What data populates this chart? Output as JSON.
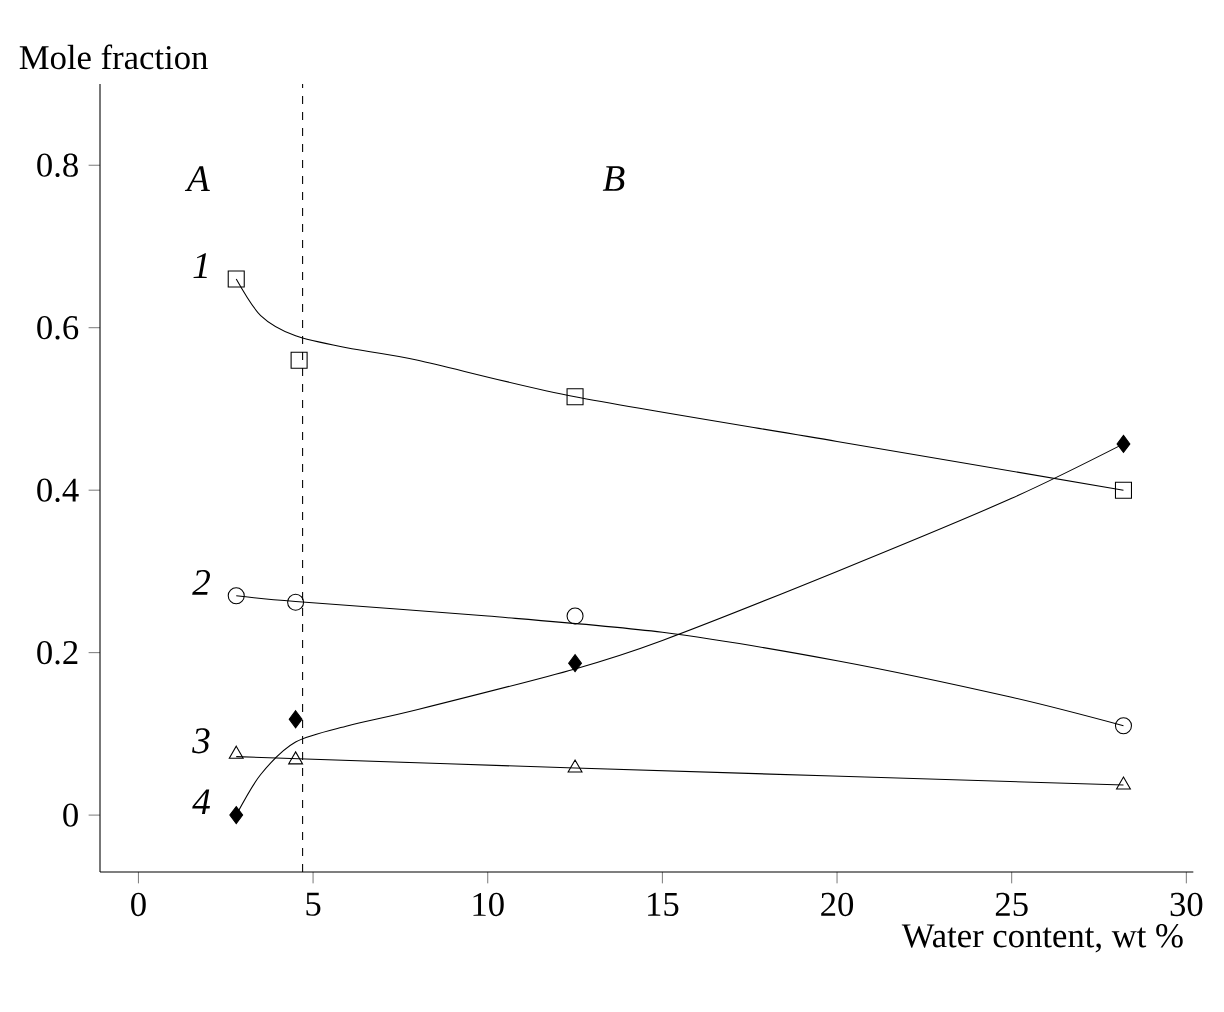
{
  "chart_data": {
    "type": "scatter",
    "xlabel": "Water content, wt %",
    "ylabel": "Mole fraction",
    "xlim": [
      -1.1,
      30.2
    ],
    "ylim": [
      -0.07,
      0.9
    ],
    "xticks": [
      0,
      5,
      10,
      15,
      20,
      25,
      30
    ],
    "yticks": [
      0,
      0.2,
      0.4,
      0.6,
      0.8
    ],
    "ref_lines": [
      {
        "axis": "x",
        "value": 4.7,
        "line_style": "dashed",
        "color": "#000000"
      }
    ],
    "annotations": [
      "*A*",
      "*B*"
    ],
    "series": [
      {
        "name": "*1*",
        "color": "#000000",
        "marker": "square",
        "x": [
          2.8,
          4.6,
          12.5,
          28.2
        ],
        "values": [
          0.66,
          0.56,
          0.515,
          0.4
        ]
      },
      {
        "name": "*2*",
        "color": "#000000",
        "marker": "circle",
        "x": [
          2.8,
          4.5,
          12.5,
          28.2
        ],
        "values": [
          0.27,
          0.262,
          0.245,
          0.11
        ]
      },
      {
        "name": "*3*",
        "color": "#000000",
        "marker": "triangle",
        "x": [
          2.8,
          4.5,
          12.5,
          28.2
        ],
        "values": [
          0.075,
          0.068,
          0.058,
          0.037
        ]
      },
      {
        "name": "*4*",
        "color": "#000000",
        "marker": "diamond",
        "x": [
          2.8,
          4.5,
          12.5,
          28.2
        ],
        "values": [
          0.0,
          0.118,
          0.187,
          0.457
        ]
      },
      {
        "type": "line",
        "color": "#000000",
        "marker": "none",
        "x": [
          2.8,
          3.5,
          4.5,
          6,
          8,
          12.5,
          20,
          28.2
        ],
        "values": [
          0.66,
          0.615,
          0.59,
          0.575,
          0.56,
          0.515,
          0.46,
          0.4
        ]
      },
      {
        "type": "line",
        "color": "#000000",
        "marker": "none",
        "x": [
          2.8,
          4.5,
          10,
          15,
          20,
          25,
          28.2
        ],
        "values": [
          0.27,
          0.263,
          0.245,
          0.225,
          0.19,
          0.145,
          0.11
        ]
      },
      {
        "type": "line",
        "color": "#000000",
        "marker": "none",
        "x": [
          2.8,
          12.5,
          28.2
        ],
        "values": [
          0.072,
          0.058,
          0.037
        ]
      },
      {
        "type": "line",
        "color": "#000000",
        "marker": "none",
        "x": [
          2.8,
          3.5,
          4.5,
          6,
          8,
          12.5,
          15,
          20,
          25,
          28.2
        ],
        "values": [
          0.0,
          0.05,
          0.09,
          0.11,
          0.13,
          0.18,
          0.215,
          0.3,
          0.39,
          0.457
        ]
      }
    ]
  }
}
